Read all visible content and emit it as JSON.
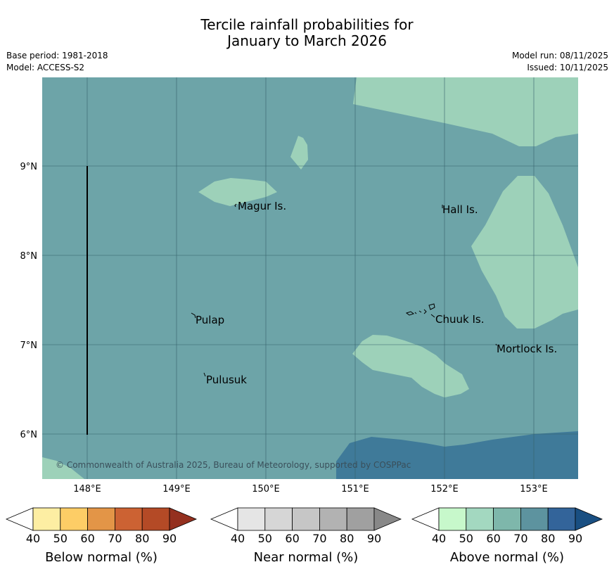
{
  "header": {
    "title_line1": "Tercile rainfall probabilities for",
    "title_line2": "January to March 2026",
    "base_period": "Base period: 1981-2018",
    "model": "Model: ACCESS-S2",
    "model_run": "Model run: 08/11/2025",
    "issued": "Issued: 10/11/2025"
  },
  "map": {
    "lon_ticks": [
      "148°E",
      "149°E",
      "150°E",
      "151°E",
      "152°E",
      "153°E"
    ],
    "lat_ticks": [
      "9°N",
      "8°N",
      "7°N",
      "6°N"
    ],
    "places": [
      "Magur Is.",
      "Hall Is.",
      "Pulap",
      "Chuuk Is.",
      "Mortlock Is.",
      "Pulusuk"
    ],
    "copyright": "© Commonwealth of Australia 2025, Bureau of Meteorology, supported by COSPPac",
    "colors": {
      "background": "#6da4a8",
      "above_50_60": "#9dd1b9",
      "above_80_90": "#3f7a99",
      "gridline": "#35606a"
    }
  },
  "colorbars": {
    "tick_labels": [
      "40",
      "50",
      "60",
      "70",
      "80",
      "90"
    ],
    "below": {
      "title": "Below normal (%)",
      "colors": [
        "#fdeea3",
        "#fdcd66",
        "#e39547",
        "#cc6233",
        "#b44a26",
        "#94301f"
      ]
    },
    "near": {
      "title": "Near normal (%)",
      "colors": [
        "#e5e5e5",
        "#d6d6d6",
        "#c6c6c6",
        "#b2b2b2",
        "#a0a0a0",
        "#888888"
      ]
    },
    "above": {
      "title": "Above normal (%)",
      "colors": [
        "#c7f8cb",
        "#a3d8c0",
        "#7eb7ab",
        "#5d939f",
        "#33649a",
        "#194f82"
      ]
    }
  }
}
